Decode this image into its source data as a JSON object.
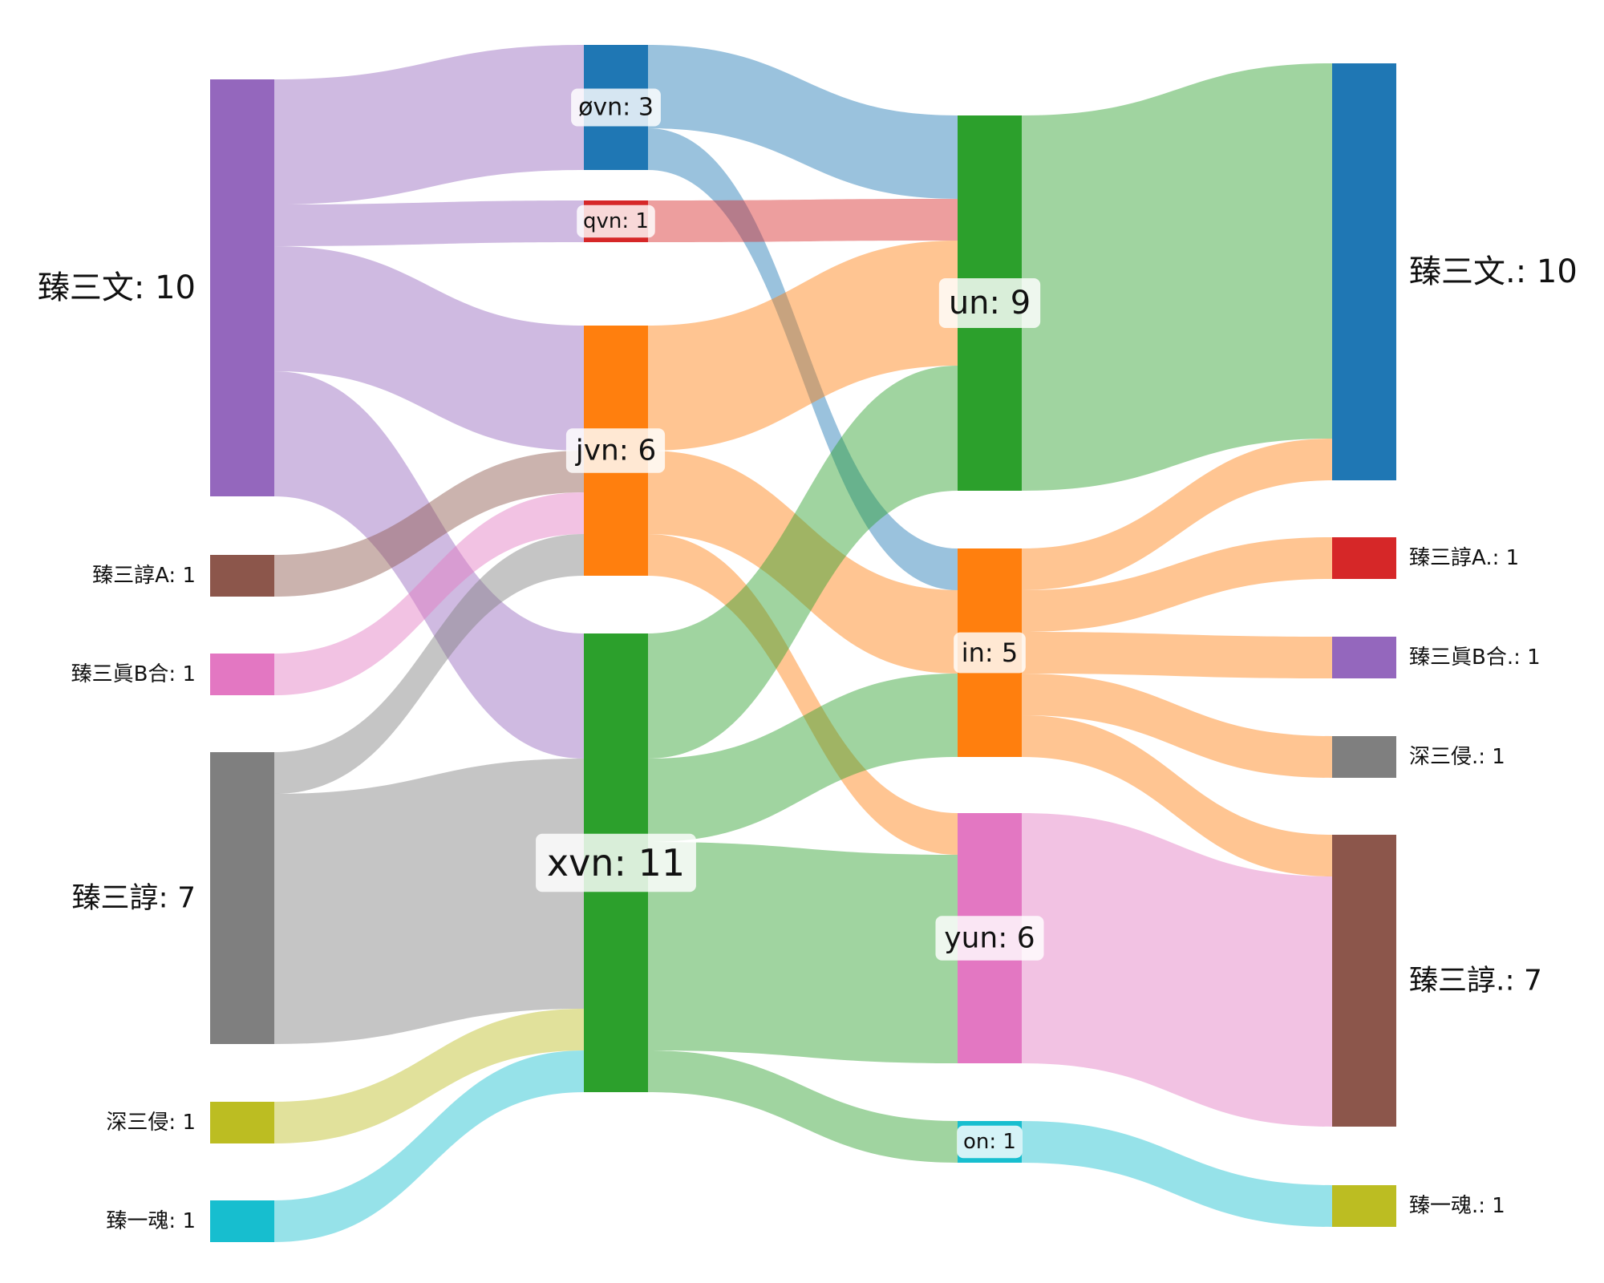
{
  "chart_data": {
    "type": "sankey",
    "nodes": [
      {
        "id": "s_wen",
        "label": "臻三文: 10",
        "color": "#9467bd",
        "column": 0
      },
      {
        "id": "s_chunA",
        "label": "臻三諄A: 1",
        "color": "#8c564b",
        "column": 0
      },
      {
        "id": "s_zhenB",
        "label": "臻三眞B合: 1",
        "color": "#e377c2",
        "column": 0
      },
      {
        "id": "s_chun",
        "label": "臻三諄: 7",
        "color": "#7f7f7f",
        "column": 0
      },
      {
        "id": "s_qin",
        "label": "深三侵: 1",
        "color": "#bcbd22",
        "column": 0
      },
      {
        "id": "s_hun",
        "label": "臻一魂: 1",
        "color": "#17becf",
        "column": 0
      },
      {
        "id": "m_ovn",
        "label": "øvn: 3",
        "color": "#1f77b4",
        "column": 1
      },
      {
        "id": "m_qvn",
        "label": "qvn: 1",
        "color": "#d62728",
        "column": 1
      },
      {
        "id": "m_jvn",
        "label": "jvn: 6",
        "color": "#ff7f0e",
        "column": 1
      },
      {
        "id": "m_xvn",
        "label": "xvn: 11",
        "color": "#2ca02c",
        "column": 1
      },
      {
        "id": "f_un",
        "label": "un: 9",
        "color": "#2ca02c",
        "column": 2
      },
      {
        "id": "f_in",
        "label": "in: 5",
        "color": "#ff7f0e",
        "column": 2
      },
      {
        "id": "f_yun",
        "label": "yun: 6",
        "color": "#e377c2",
        "column": 2
      },
      {
        "id": "f_on",
        "label": "on: 1",
        "color": "#17becf",
        "column": 2
      },
      {
        "id": "t_wen",
        "label": "臻三文.: 10",
        "color": "#1f77b4",
        "column": 3
      },
      {
        "id": "t_chunA",
        "label": "臻三諄A.: 1",
        "color": "#d62728",
        "column": 3
      },
      {
        "id": "t_zhenB",
        "label": "臻三眞B合.: 1",
        "color": "#9467bd",
        "column": 3
      },
      {
        "id": "t_qin",
        "label": "深三侵.: 1",
        "color": "#7f7f7f",
        "column": 3
      },
      {
        "id": "t_chun",
        "label": "臻三諄.: 7",
        "color": "#8c564b",
        "column": 3
      },
      {
        "id": "t_hun",
        "label": "臻一魂.: 1",
        "color": "#bcbd22",
        "column": 3
      }
    ],
    "links": [
      {
        "source": "s_wen",
        "target": "m_ovn",
        "value": 3
      },
      {
        "source": "s_wen",
        "target": "m_qvn",
        "value": 1
      },
      {
        "source": "s_wen",
        "target": "m_jvn",
        "value": 3
      },
      {
        "source": "s_wen",
        "target": "m_xvn",
        "value": 3
      },
      {
        "source": "s_chunA",
        "target": "m_jvn",
        "value": 1
      },
      {
        "source": "s_zhenB",
        "target": "m_jvn",
        "value": 1
      },
      {
        "source": "s_chun",
        "target": "m_jvn",
        "value": 1
      },
      {
        "source": "s_chun",
        "target": "m_xvn",
        "value": 6
      },
      {
        "source": "s_qin",
        "target": "m_xvn",
        "value": 1
      },
      {
        "source": "s_hun",
        "target": "m_xvn",
        "value": 1
      },
      {
        "source": "m_ovn",
        "target": "f_un",
        "value": 2
      },
      {
        "source": "m_ovn",
        "target": "f_in",
        "value": 1
      },
      {
        "source": "m_qvn",
        "target": "f_un",
        "value": 1
      },
      {
        "source": "m_jvn",
        "target": "f_un",
        "value": 3
      },
      {
        "source": "m_jvn",
        "target": "f_in",
        "value": 2
      },
      {
        "source": "m_jvn",
        "target": "f_yun",
        "value": 1
      },
      {
        "source": "m_xvn",
        "target": "f_un",
        "value": 3
      },
      {
        "source": "m_xvn",
        "target": "f_in",
        "value": 2
      },
      {
        "source": "m_xvn",
        "target": "f_yun",
        "value": 5
      },
      {
        "source": "m_xvn",
        "target": "f_on",
        "value": 1
      },
      {
        "source": "f_un",
        "target": "t_wen",
        "value": 9
      },
      {
        "source": "f_in",
        "target": "t_wen",
        "value": 1
      },
      {
        "source": "f_in",
        "target": "t_chunA",
        "value": 1
      },
      {
        "source": "f_in",
        "target": "t_zhenB",
        "value": 1
      },
      {
        "source": "f_in",
        "target": "t_qin",
        "value": 1
      },
      {
        "source": "f_in",
        "target": "t_chun",
        "value": 1
      },
      {
        "source": "f_yun",
        "target": "t_chun",
        "value": 6
      },
      {
        "source": "f_on",
        "target": "t_hun",
        "value": 1
      }
    ]
  }
}
